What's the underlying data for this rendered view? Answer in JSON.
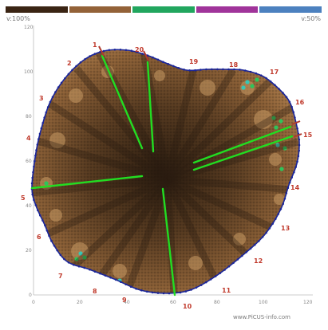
{
  "legend": {
    "colors": [
      "#3a2413",
      "#936238",
      "#21a65e",
      "#a0349a",
      "#4c81bf"
    ],
    "left_label": "v:100%",
    "right_label": "v:50%"
  },
  "axes": {
    "y_ticks": [
      "120",
      "100",
      "80",
      "60",
      "40",
      "20",
      "0"
    ],
    "x_ticks": [
      "0",
      "20",
      "40",
      "60",
      "80",
      "100",
      "120"
    ]
  },
  "sensors": [
    "1",
    "2",
    "3",
    "4",
    "5",
    "6",
    "7",
    "8",
    "9",
    "10",
    "11",
    "12",
    "13",
    "14",
    "15",
    "16",
    "17",
    "18",
    "19",
    "20"
  ],
  "colors": {
    "outline": "#1a2599",
    "path": "#22dd22",
    "wood_light": "#c99a64",
    "wood_dark": "#2c1d10"
  },
  "footer": {
    "watermark": "www.PiCUS-info.com"
  }
}
